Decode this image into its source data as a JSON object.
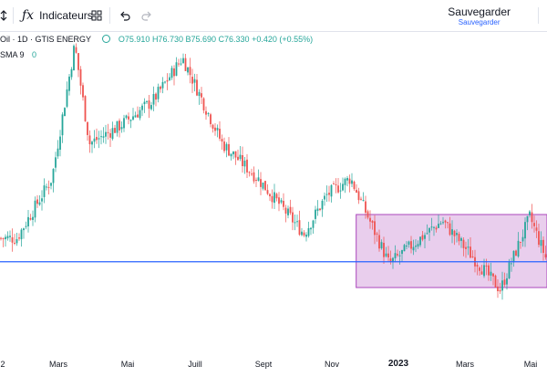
{
  "toolbar": {
    "indicators_label": "Indicateurs",
    "save_label": "Sauvegarder",
    "save_sub": "Sauvegarder"
  },
  "legend": {
    "symbol": "Oil · 1D · GTIS ENERGY",
    "open": "O75.910",
    "high": "H76.730",
    "low": "B75.690",
    "close": "C76.330",
    "change": "+0.420 (+0.55%)",
    "sma_label": "SMA 9",
    "sma_value": "0"
  },
  "colors": {
    "up": "#26a69a",
    "down": "#ef5350",
    "hline": "#2962ff",
    "box_fill": "#e1bee7",
    "box_stroke": "#ab47bc"
  },
  "x_axis": {
    "labels": [
      "2",
      "Mars",
      "Mai",
      "Juill",
      "Sept",
      "Nov",
      "2023",
      "Mars",
      "Mai"
    ]
  },
  "chart_data": {
    "type": "candlestick",
    "timeframe": "1D",
    "x_labels": [
      "2",
      "Mars",
      "Mai",
      "Juill",
      "Sept",
      "Nov",
      "2023",
      "Mars",
      "Mai"
    ],
    "approx_close_path": [
      {
        "t": "2022-01",
        "v": 78
      },
      {
        "t": "2022-02",
        "v": 92
      },
      {
        "t": "2022-03-07",
        "v": 123
      },
      {
        "t": "2022-03-20",
        "v": 100
      },
      {
        "t": "2022-04",
        "v": 104
      },
      {
        "t": "2022-05",
        "v": 110
      },
      {
        "t": "2022-06-10",
        "v": 120
      },
      {
        "t": "2022-07",
        "v": 100
      },
      {
        "t": "2022-08",
        "v": 92
      },
      {
        "t": "2022-09-25",
        "v": 79
      },
      {
        "t": "2022-10",
        "v": 88
      },
      {
        "t": "2022-11-05",
        "v": 92
      },
      {
        "t": "2022-12-09",
        "v": 72
      },
      {
        "t": "2023-01",
        "v": 80
      },
      {
        "t": "2023-01-25",
        "v": 82
      },
      {
        "t": "2023-03-17",
        "v": 66
      },
      {
        "t": "2023-04-12",
        "v": 83
      },
      {
        "t": "2023-05-04",
        "v": 68
      },
      {
        "t": "2023-05-20",
        "v": 72
      }
    ],
    "annotations": {
      "horizontal_line": 72.5,
      "range_box": {
        "start": "2022-11-10",
        "end": "2023-05-31",
        "top": 83.5,
        "bottom": 66.5
      }
    }
  }
}
